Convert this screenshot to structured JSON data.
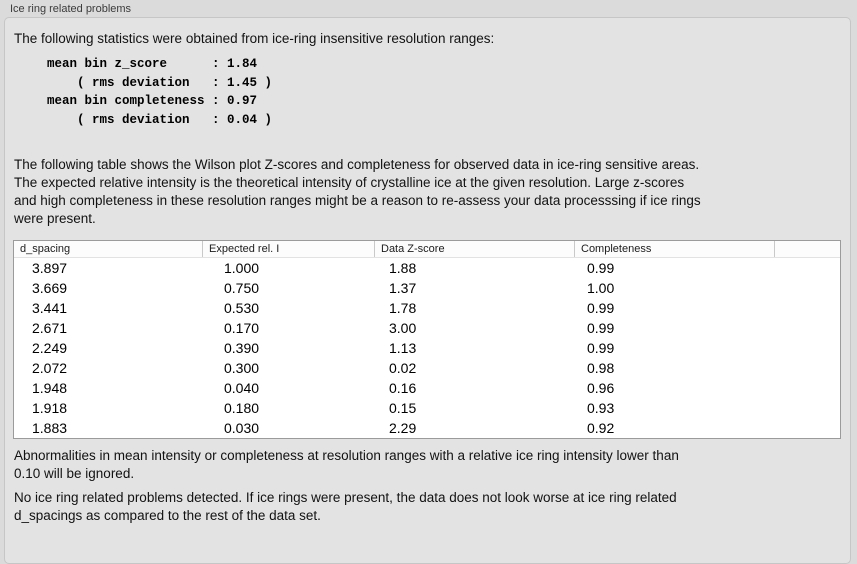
{
  "panel_title": "Ice ring related problems",
  "sections": {
    "intro": "The following statistics were obtained from ice-ring insensitive resolution ranges:",
    "stats_block": "mean bin z_score      : 1.84\n    ( rms deviation   : 1.45 )\nmean bin completeness : 0.97\n    ( rms deviation   : 0.04 )",
    "description": "The following table shows the Wilson plot Z-scores and completeness for observed data in ice-ring sensitive areas.\nThe expected relative intensity is the theoretical intensity of crystalline ice at the given resolution. Large z-scores\nand high completeness in these resolution ranges might be a reason to re-assess your data processsing if ice rings\nwere present.",
    "ignore_note": "Abnormalities in mean intensity or completeness at resolution ranges with a relative ice ring intensity lower than\n0.10 will be ignored.",
    "conclusion": "No ice ring related problems detected. If ice rings were present, the data does not look worse at ice ring related\nd_spacings as compared to the rest of the data set."
  },
  "stats": {
    "mean_bin_z_score": "1.84",
    "z_score_rms_deviation": "1.45",
    "mean_bin_completeness": "0.97",
    "completeness_rms_deviation": "0.04"
  },
  "table": {
    "columns": [
      "d_spacing",
      "Expected rel. I",
      "Data Z-score",
      "Completeness",
      ""
    ],
    "rows": [
      [
        "3.897",
        "1.000",
        "1.88",
        "0.99"
      ],
      [
        "3.669",
        "0.750",
        "1.37",
        "1.00"
      ],
      [
        "3.441",
        "0.530",
        "1.78",
        "0.99"
      ],
      [
        "2.671",
        "0.170",
        "3.00",
        "0.99"
      ],
      [
        "2.249",
        "0.390",
        "1.13",
        "0.99"
      ],
      [
        "2.072",
        "0.300",
        "0.02",
        "0.98"
      ],
      [
        "1.948",
        "0.040",
        "0.16",
        "0.96"
      ],
      [
        "1.918",
        "0.180",
        "0.15",
        "0.93"
      ],
      [
        "1.883",
        "0.030",
        "2.29",
        "0.92"
      ]
    ]
  },
  "colors": {
    "page_background": "#dbdbdb",
    "panel_background": "#e3e3e3",
    "panel_border": "#c6c6c6",
    "table_background": "#ffffff",
    "table_border": "#9b9b9b",
    "header_separator": "#c9c9c9",
    "body_text": "#121212",
    "title_text": "#3b3b3b"
  }
}
